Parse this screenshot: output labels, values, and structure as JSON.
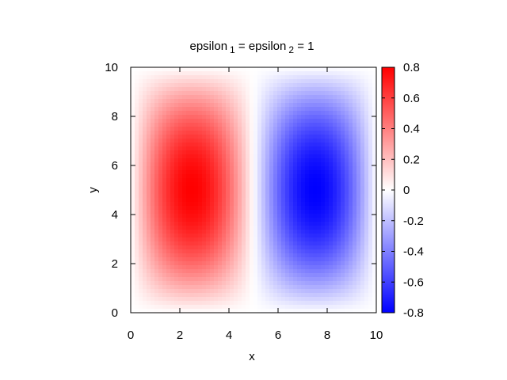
{
  "chart_data": {
    "type": "heatmap",
    "title": "epsilon 1 = epsilon 2 = 1",
    "title_parts": {
      "part1": "epsilon",
      "sub1": "1",
      "part2": " = epsilon",
      "sub2": "2",
      "part3": " = 1"
    },
    "xlabel": "x",
    "ylabel": "y",
    "xlim": [
      0,
      10
    ],
    "ylim": [
      0,
      10
    ],
    "xticks": [
      "0",
      "2",
      "4",
      "6",
      "8",
      "10"
    ],
    "yticks": [
      "0",
      "2",
      "4",
      "6",
      "8",
      "10"
    ],
    "colorbar": {
      "range": [
        -0.8,
        0.8
      ],
      "ticks": [
        "-0.8",
        "-0.6",
        "-0.4",
        "-0.2",
        "0",
        "0.2",
        "0.4",
        "0.6",
        "0.8"
      ],
      "colors": {
        "min": "#0000ff",
        "mid": "#ffffff",
        "max": "#ff0000"
      }
    },
    "field": {
      "description_function": "z = 0.8 * sin(pi*x/5) * sin(pi*y/10)",
      "peak_positive": {
        "x": 2.5,
        "y": 5,
        "value": 0.8
      },
      "peak_negative": {
        "x": 7.5,
        "y": 5,
        "value": -0.8
      }
    }
  }
}
